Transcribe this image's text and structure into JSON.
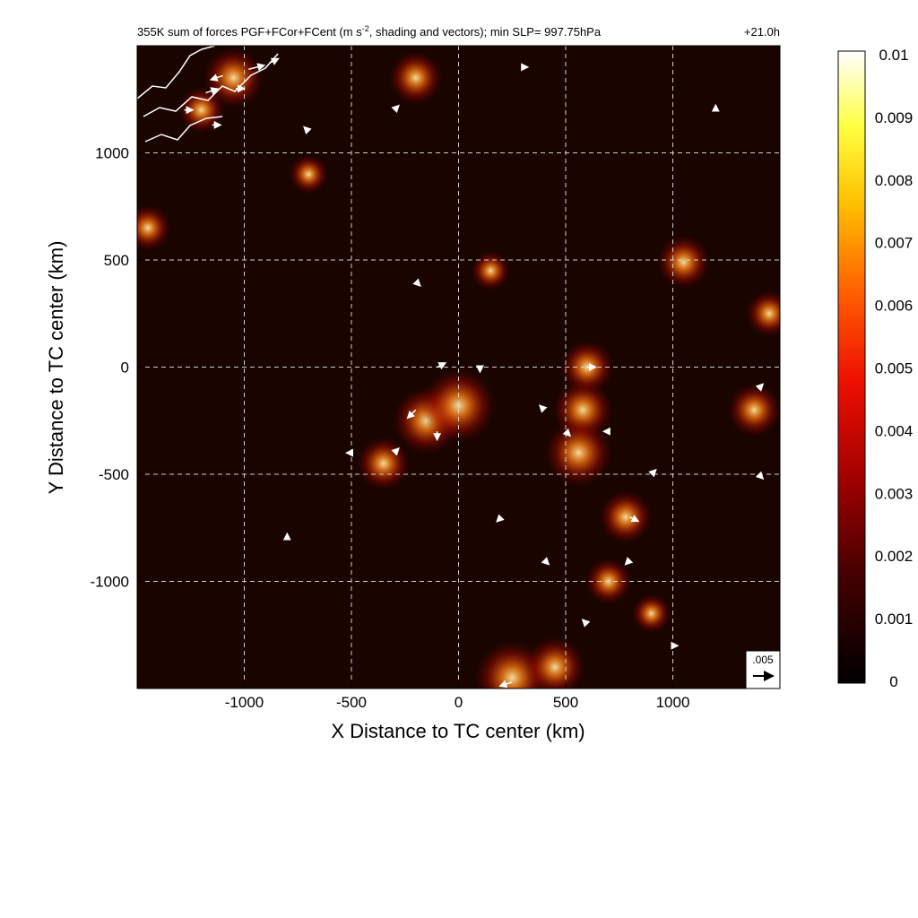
{
  "chart_data": {
    "type": "heatmap",
    "title": "355K sum of forces PGF+FCor+FCent (m s^-2, shading and vectors); min SLP= 997.75hPa",
    "title_main": "355K sum of forces PGF+FCor+FCent (m s",
    "title_sup": "-2",
    "title_rest": ", shading and vectors); min SLP= 997.75hPa",
    "time_label": "+21.0h",
    "xlabel": "X Distance to TC center (km)",
    "ylabel": "Y Distance to TC center (km)",
    "xlim": [
      -1500,
      1500
    ],
    "ylim": [
      -1500,
      1500
    ],
    "x_ticks": [
      -1000,
      -500,
      0,
      500,
      1000
    ],
    "y_ticks": [
      1000,
      500,
      0,
      -500,
      -1000
    ],
    "grid": true,
    "colormap": "black-red-orange-yellow-white",
    "colorbar": {
      "min": 0,
      "max": 0.01,
      "tick_labels": [
        "0.01",
        "0.009",
        "0.008",
        "0.007",
        "0.006",
        "0.005",
        "0.004",
        "0.003",
        "0.002",
        "0.001",
        "0"
      ],
      "tick_values": [
        0.01,
        0.009,
        0.008,
        0.007,
        0.006,
        0.005,
        0.004,
        0.003,
        0.002,
        0.001,
        0
      ]
    },
    "reference_vector": {
      "label": ".005",
      "value": 0.005
    },
    "colors": {
      "background": "#1a0400",
      "grid": "#cfcfcf",
      "vector": "#ffffff",
      "coastline": "#ffffff"
    },
    "vectors": [
      {
        "x": -980,
        "y": 1390,
        "u": 0.004,
        "v": 0.001
      },
      {
        "x": -1100,
        "y": 1360,
        "u": -0.003,
        "v": -0.001
      },
      {
        "x": -1180,
        "y": 1280,
        "u": 0.003,
        "v": 0.001
      },
      {
        "x": -1040,
        "y": 1300,
        "u": 0.002,
        "v": 0.0
      },
      {
        "x": -1150,
        "y": 1130,
        "u": 0.002,
        "v": 0.0
      },
      {
        "x": -1280,
        "y": 1200,
        "u": 0.002,
        "v": 0.0
      },
      {
        "x": -880,
        "y": 1420,
        "u": 0.002,
        "v": 0.001
      },
      {
        "x": -100,
        "y": 0,
        "u": 0.002,
        "v": 0.001
      },
      {
        "x": -200,
        "y": -200,
        "u": -0.002,
        "v": -0.002
      },
      {
        "x": -100,
        "y": -300,
        "u": 0.0,
        "v": -0.002
      },
      {
        "x": 600,
        "y": 0,
        "u": 0.002,
        "v": 0.0
      },
      {
        "x": 800,
        "y": -700,
        "u": 0.002,
        "v": -0.001
      },
      {
        "x": 250,
        "y": -1470,
        "u": -0.003,
        "v": -0.001
      },
      {
        "x": 100,
        "y": 0,
        "u": 0.0,
        "v": -0.001
      },
      {
        "x": -300,
        "y": -400,
        "u": 0.001,
        "v": 0.001
      },
      {
        "x": 400,
        "y": -200,
        "u": -0.001,
        "v": 0.001
      },
      {
        "x": 500,
        "y": -300,
        "u": 0.001,
        "v": -0.001
      },
      {
        "x": 700,
        "y": -300,
        "u": -0.001,
        "v": 0.0
      },
      {
        "x": 900,
        "y": -500,
        "u": 0.001,
        "v": 0.001
      },
      {
        "x": -500,
        "y": -400,
        "u": -0.001,
        "v": 0.0
      },
      {
        "x": 400,
        "y": -900,
        "u": 0.001,
        "v": -0.001
      },
      {
        "x": 200,
        "y": -700,
        "u": -0.001,
        "v": -0.001
      },
      {
        "x": -200,
        "y": 400,
        "u": 0.001,
        "v": -0.001
      },
      {
        "x": -300,
        "y": 1200,
        "u": 0.001,
        "v": 0.001
      },
      {
        "x": -700,
        "y": 1100,
        "u": -0.001,
        "v": 0.001
      },
      {
        "x": 300,
        "y": 1400,
        "u": 0.001,
        "v": 0.0
      },
      {
        "x": 1200,
        "y": 1200,
        "u": 0.0,
        "v": 0.001
      },
      {
        "x": 1400,
        "y": -500,
        "u": 0.001,
        "v": -0.001
      },
      {
        "x": 1400,
        "y": -100,
        "u": 0.001,
        "v": 0.001
      },
      {
        "x": 600,
        "y": -1200,
        "u": -0.001,
        "v": 0.001
      },
      {
        "x": 800,
        "y": -900,
        "u": -0.001,
        "v": -0.001
      },
      {
        "x": -800,
        "y": -800,
        "u": 0.0,
        "v": 0.001
      },
      {
        "x": 1000,
        "y": -1300,
        "u": 0.001,
        "v": 0.0
      }
    ],
    "hotspots": [
      {
        "x": -1050,
        "y": 1350,
        "value": 0.006
      },
      {
        "x": -1200,
        "y": 1200,
        "value": 0.004
      },
      {
        "x": -200,
        "y": 1350,
        "value": 0.005
      },
      {
        "x": -150,
        "y": -250,
        "value": 0.007
      },
      {
        "x": 0,
        "y": -180,
        "value": 0.008
      },
      {
        "x": 580,
        "y": -200,
        "value": 0.006
      },
      {
        "x": 560,
        "y": -400,
        "value": 0.007
      },
      {
        "x": 600,
        "y": 0,
        "value": 0.005
      },
      {
        "x": 780,
        "y": -700,
        "value": 0.005
      },
      {
        "x": 250,
        "y": -1450,
        "value": 0.008
      },
      {
        "x": 450,
        "y": -1400,
        "value": 0.006
      },
      {
        "x": 1380,
        "y": -200,
        "value": 0.005
      },
      {
        "x": 1450,
        "y": 250,
        "value": 0.004
      },
      {
        "x": -1450,
        "y": 650,
        "value": 0.004
      },
      {
        "x": 150,
        "y": 450,
        "value": 0.003
      },
      {
        "x": 1050,
        "y": 490,
        "value": 0.005
      },
      {
        "x": -350,
        "y": -450,
        "value": 0.005
      },
      {
        "x": 700,
        "y": -1000,
        "value": 0.004
      },
      {
        "x": -700,
        "y": 900,
        "value": 0.003
      },
      {
        "x": 900,
        "y": -1150,
        "value": 0.003
      }
    ]
  }
}
